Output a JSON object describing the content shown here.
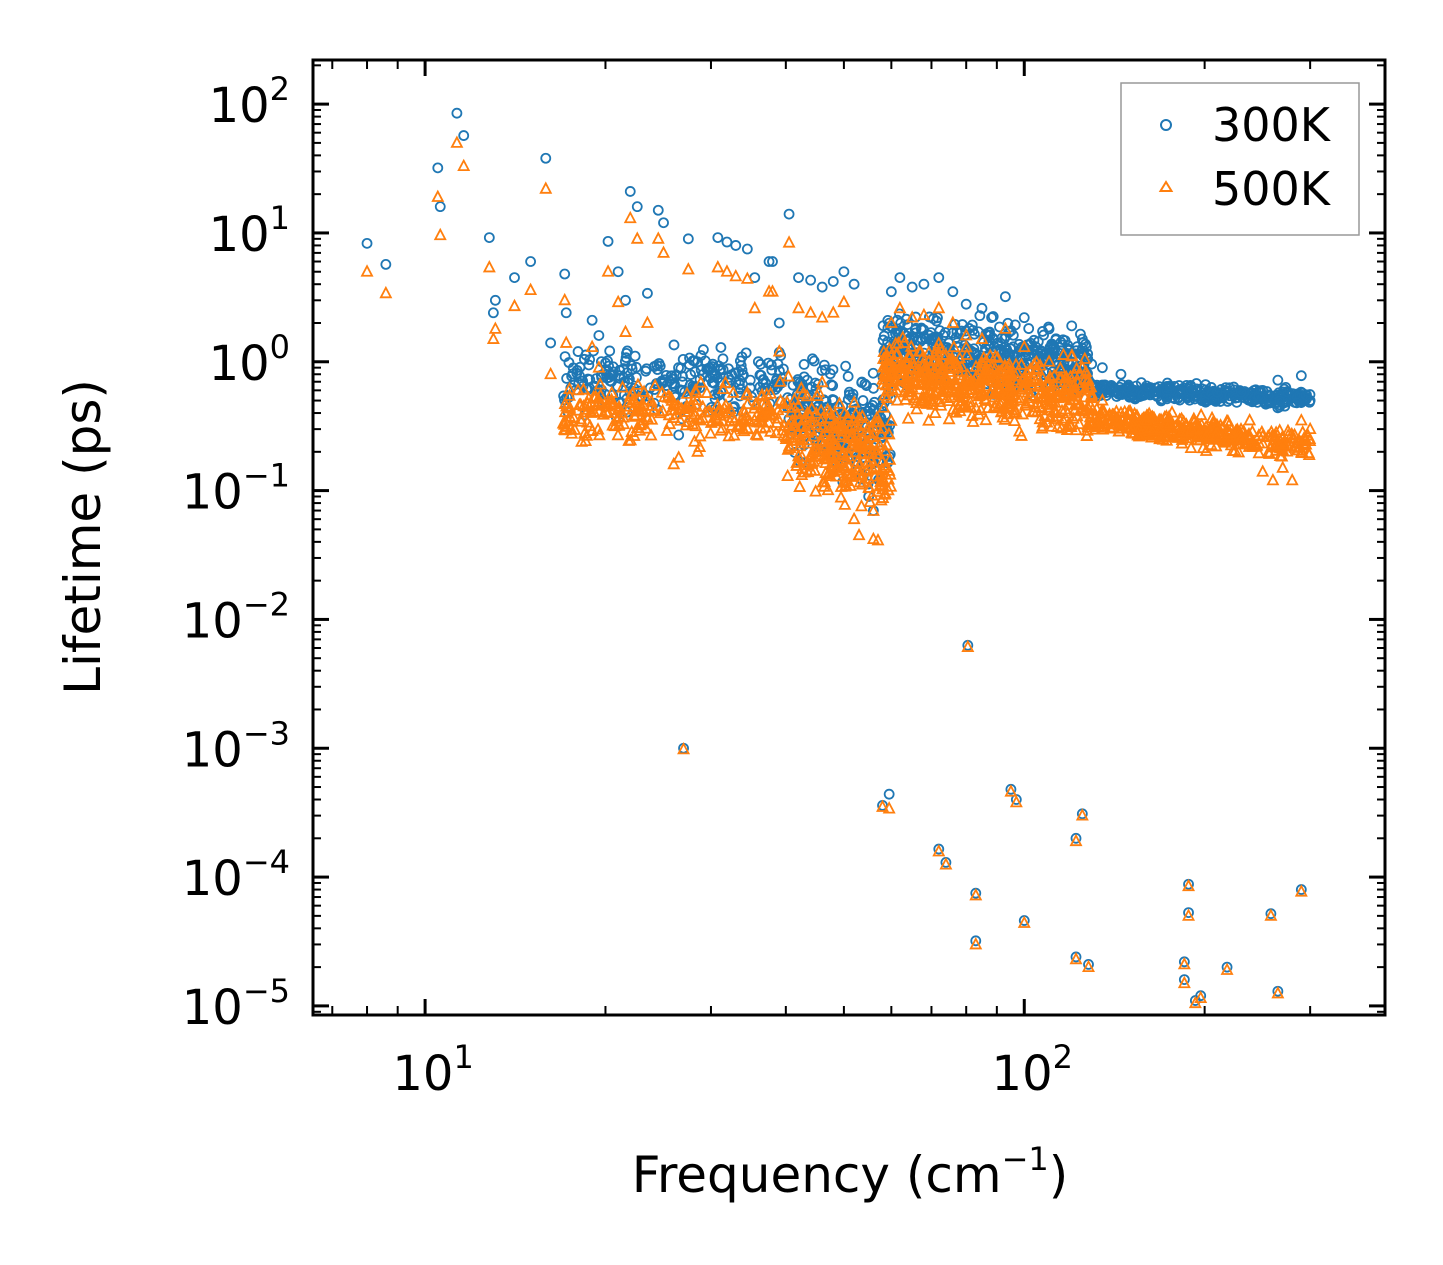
{
  "chart_data": {
    "type": "scatter",
    "xscale": "log",
    "yscale": "log",
    "xlabel": "Frequency (cm",
    "xlabel_sup": "−1",
    "xlabel_end": ")",
    "ylabel": "Lifetime (ps)",
    "xlim": [
      6.5,
      400
    ],
    "ylim": [
      8.5e-06,
      220
    ],
    "x_tick_labels": [
      {
        "base": "10",
        "exp": "1",
        "value": 10
      },
      {
        "base": "10",
        "exp": "2",
        "value": 100
      }
    ],
    "y_tick_labels": [
      {
        "base": "10",
        "exp": "2",
        "value": 100
      },
      {
        "base": "10",
        "exp": "1",
        "value": 10
      },
      {
        "base": "10",
        "exp": "0",
        "value": 1
      },
      {
        "base": "10",
        "exp": "−1",
        "value": 0.1
      },
      {
        "base": "10",
        "exp": "−2",
        "value": 0.01
      },
      {
        "base": "10",
        "exp": "−3",
        "value": 0.001
      },
      {
        "base": "10",
        "exp": "−4",
        "value": 0.0001
      },
      {
        "base": "10",
        "exp": "−5",
        "value": 1e-05
      }
    ],
    "legend": {
      "position": "top-right"
    },
    "series": [
      {
        "name": "300K",
        "marker": "circle",
        "color": "#1f77b4",
        "points": [
          [
            8.0,
            8.3
          ],
          [
            8.6,
            5.7
          ],
          [
            10.5,
            32
          ],
          [
            10.6,
            16
          ],
          [
            11.3,
            85
          ],
          [
            11.6,
            57
          ],
          [
            12.8,
            9.2
          ],
          [
            13.0,
            2.4
          ],
          [
            13.1,
            3.0
          ],
          [
            14.1,
            4.5
          ],
          [
            15.0,
            6.0
          ],
          [
            15.9,
            38
          ],
          [
            16.2,
            1.4
          ],
          [
            17.1,
            4.8
          ],
          [
            17.2,
            2.4
          ],
          [
            18.0,
            1.2
          ],
          [
            19.0,
            2.1
          ],
          [
            19.5,
            1.6
          ],
          [
            20.2,
            8.6
          ],
          [
            21.0,
            5.0
          ],
          [
            21.6,
            3.0
          ],
          [
            22.0,
            21
          ],
          [
            22.6,
            16
          ],
          [
            23.5,
            3.4
          ],
          [
            24.5,
            15
          ],
          [
            25.0,
            12
          ],
          [
            26.5,
            0.27
          ],
          [
            27.5,
            9.0
          ],
          [
            28.5,
            1.0
          ],
          [
            30.8,
            9.2
          ],
          [
            31.9,
            8.5
          ],
          [
            33.0,
            8.0
          ],
          [
            34.5,
            7.5
          ],
          [
            35.5,
            4.5
          ],
          [
            37.5,
            6.0
          ],
          [
            38.0,
            6.0
          ],
          [
            39.0,
            2.0
          ],
          [
            40.5,
            14
          ],
          [
            42.0,
            4.5
          ],
          [
            44.0,
            4.3
          ],
          [
            46.0,
            3.8
          ],
          [
            48.0,
            4.2
          ],
          [
            50.0,
            5.0
          ],
          [
            52.0,
            4.0
          ],
          [
            55.0,
            0.09
          ],
          [
            56.0,
            0.07
          ],
          [
            60.0,
            3.5
          ],
          [
            62.0,
            4.5
          ],
          [
            65.0,
            3.8
          ],
          [
            68.0,
            4.0
          ],
          [
            72.0,
            4.5
          ],
          [
            76.0,
            3.5
          ],
          [
            80.0,
            2.8
          ],
          [
            85.0,
            2.6
          ],
          [
            93.0,
            3.2
          ],
          [
            100.0,
            2.2
          ],
          [
            110.0,
            1.8
          ],
          [
            120.0,
            1.9
          ],
          [
            125.0,
            1.5
          ],
          [
            135.0,
            0.9
          ],
          [
            145.0,
            0.8
          ],
          [
            160.0,
            0.65
          ],
          [
            175.0,
            0.65
          ],
          [
            190.0,
            0.6
          ],
          [
            210.0,
            0.58
          ],
          [
            230.0,
            0.58
          ],
          [
            250.0,
            0.6
          ],
          [
            265.0,
            0.72
          ],
          [
            285.0,
            0.48
          ],
          [
            290.0,
            0.78
          ],
          [
            295.0,
            0.55
          ],
          [
            300.0,
            0.5
          ],
          [
            27.0,
            0.001
          ],
          [
            58.0,
            0.00036
          ],
          [
            59.5,
            0.00044
          ],
          [
            72.0,
            0.000165
          ],
          [
            74.0,
            0.00013
          ],
          [
            80.5,
            0.0063
          ],
          [
            83.0,
            7.5e-05
          ],
          [
            83.0,
            3.2e-05
          ],
          [
            95.0,
            0.00048
          ],
          [
            97.0,
            0.0004
          ],
          [
            100.0,
            4.6e-05
          ],
          [
            122.0,
            0.0002
          ],
          [
            125.0,
            0.00031
          ],
          [
            122.0,
            2.4e-05
          ],
          [
            128.0,
            2.1e-05
          ],
          [
            185.0,
            2.2e-05
          ],
          [
            185.0,
            1.6e-05
          ],
          [
            188.0,
            8.8e-05
          ],
          [
            188.0,
            5.3e-05
          ],
          [
            193.0,
            1.1e-05
          ],
          [
            197.0,
            1.2e-05
          ],
          [
            218.0,
            2e-05
          ],
          [
            258.0,
            5.2e-05
          ],
          [
            265.0,
            1.3e-05
          ],
          [
            290.0,
            8e-05
          ]
        ]
      },
      {
        "name": "500K",
        "marker": "triangle",
        "color": "#ff7f0e",
        "points": [
          [
            8.0,
            5.0
          ],
          [
            8.6,
            3.4
          ],
          [
            10.5,
            19
          ],
          [
            10.6,
            9.6
          ],
          [
            11.3,
            50
          ],
          [
            11.6,
            33
          ],
          [
            12.8,
            5.4
          ],
          [
            13.0,
            1.5
          ],
          [
            13.1,
            1.8
          ],
          [
            14.1,
            2.7
          ],
          [
            15.0,
            3.6
          ],
          [
            15.9,
            22
          ],
          [
            16.2,
            0.8
          ],
          [
            17.1,
            3.0
          ],
          [
            17.2,
            1.4
          ],
          [
            18.0,
            0.6
          ],
          [
            19.0,
            1.3
          ],
          [
            19.5,
            0.9
          ],
          [
            20.2,
            5.0
          ],
          [
            21.0,
            2.9
          ],
          [
            21.6,
            1.7
          ],
          [
            22.0,
            13
          ],
          [
            22.6,
            9.0
          ],
          [
            23.5,
            2.0
          ],
          [
            24.5,
            9.0
          ],
          [
            25.0,
            7.0
          ],
          [
            26.0,
            0.16
          ],
          [
            26.5,
            0.18
          ],
          [
            27.5,
            5.2
          ],
          [
            28.5,
            0.2
          ],
          [
            30.8,
            5.4
          ],
          [
            31.9,
            5.0
          ],
          [
            33.0,
            4.6
          ],
          [
            34.5,
            4.4
          ],
          [
            35.5,
            2.6
          ],
          [
            37.5,
            3.5
          ],
          [
            38.0,
            3.5
          ],
          [
            39.0,
            1.2
          ],
          [
            40.5,
            8.4
          ],
          [
            42.0,
            2.6
          ],
          [
            44.0,
            2.4
          ],
          [
            46.0,
            2.2
          ],
          [
            48.0,
            2.4
          ],
          [
            50.0,
            2.9
          ],
          [
            52.0,
            0.06
          ],
          [
            53.0,
            0.045
          ],
          [
            56.0,
            0.042
          ],
          [
            57.0,
            0.041
          ],
          [
            60.0,
            2.0
          ],
          [
            62.0,
            2.6
          ],
          [
            65.0,
            2.2
          ],
          [
            68.0,
            2.3
          ],
          [
            72.0,
            2.6
          ],
          [
            76.0,
            2.0
          ],
          [
            80.0,
            1.6
          ],
          [
            85.0,
            1.5
          ],
          [
            93.0,
            1.8
          ],
          [
            100.0,
            1.3
          ],
          [
            110.0,
            1.0
          ],
          [
            120.0,
            1.1
          ],
          [
            125.0,
            0.9
          ],
          [
            135.0,
            0.5
          ],
          [
            145.0,
            0.4
          ],
          [
            160.0,
            0.35
          ],
          [
            175.0,
            0.33
          ],
          [
            190.0,
            0.3
          ],
          [
            210.0,
            0.28
          ],
          [
            230.0,
            0.25
          ],
          [
            250.0,
            0.14
          ],
          [
            260.0,
            0.12
          ],
          [
            270.0,
            0.15
          ],
          [
            280.0,
            0.12
          ],
          [
            290.0,
            0.35
          ],
          [
            295.0,
            0.25
          ],
          [
            300.0,
            0.3
          ],
          [
            27.0,
            0.00098
          ],
          [
            58.0,
            0.00035
          ],
          [
            59.5,
            0.00034
          ],
          [
            72.0,
            0.000158
          ],
          [
            74.0,
            0.000125
          ],
          [
            80.5,
            0.0061
          ],
          [
            83.0,
            7.2e-05
          ],
          [
            83.0,
            3e-05
          ],
          [
            95.0,
            0.00046
          ],
          [
            97.0,
            0.00038
          ],
          [
            100.0,
            4.4e-05
          ],
          [
            122.0,
            0.00019
          ],
          [
            125.0,
            0.0003
          ],
          [
            122.0,
            2.3e-05
          ],
          [
            128.0,
            2e-05
          ],
          [
            185.0,
            2.1e-05
          ],
          [
            185.0,
            1.5e-05
          ],
          [
            188.0,
            8.5e-05
          ],
          [
            188.0,
            5e-05
          ],
          [
            193.0,
            1.05e-05
          ],
          [
            197.0,
            1.15e-05
          ],
          [
            218.0,
            1.9e-05
          ],
          [
            258.0,
            5e-05
          ],
          [
            265.0,
            1.25e-05
          ],
          [
            290.0,
            7.7e-05
          ]
        ]
      }
    ],
    "dense_bands": [
      {
        "series": "300K",
        "x_range": [
          17,
          40
        ],
        "y_log_center_start": -0.15,
        "y_log_center_end": -0.15,
        "spread": 0.35,
        "count": 260
      },
      {
        "series": "300K",
        "x_range": [
          40,
          60
        ],
        "y_log_center_start": -0.35,
        "y_log_center_end": -0.55,
        "spread": 0.55,
        "count": 260
      },
      {
        "series": "300K",
        "x_range": [
          58,
          130
        ],
        "y_log_center_start": 0.1,
        "y_log_center_end": -0.05,
        "spread": 0.38,
        "count": 520
      },
      {
        "series": "300K",
        "x_range": [
          130,
          300
        ],
        "y_log_center_start": -0.22,
        "y_log_center_end": -0.28,
        "spread": 0.1,
        "count": 360
      },
      {
        "series": "500K",
        "x_range": [
          17,
          40
        ],
        "y_log_center_start": -0.4,
        "y_log_center_end": -0.4,
        "spread": 0.3,
        "count": 260
      },
      {
        "series": "500K",
        "x_range": [
          40,
          60
        ],
        "y_log_center_start": -0.55,
        "y_log_center_end": -0.8,
        "spread": 0.55,
        "count": 280
      },
      {
        "series": "500K",
        "x_range": [
          58,
          130
        ],
        "y_log_center_start": -0.1,
        "y_log_center_end": -0.3,
        "spread": 0.4,
        "count": 560
      },
      {
        "series": "500K",
        "x_range": [
          130,
          300
        ],
        "y_log_center_start": -0.45,
        "y_log_center_end": -0.65,
        "spread": 0.16,
        "count": 380
      }
    ]
  }
}
